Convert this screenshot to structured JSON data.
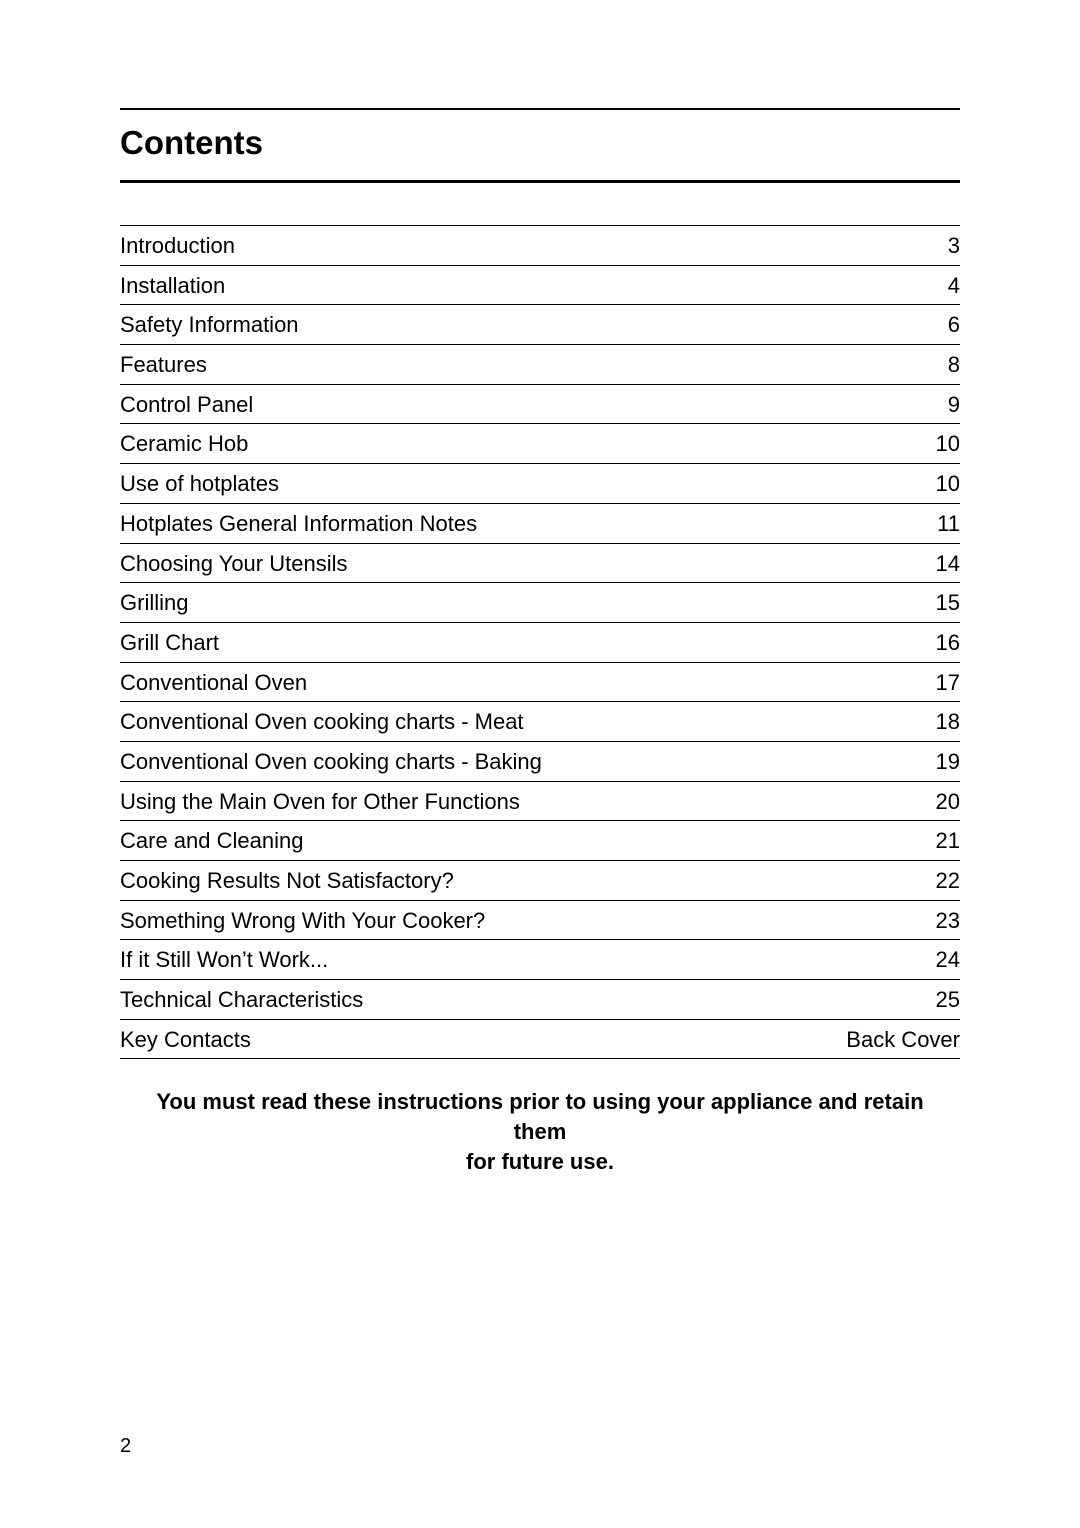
{
  "title": "Contents",
  "title_fontsize_pt": 25,
  "body_fontsize_pt": 16,
  "rule_color": "#000000",
  "background_color": "#ffffff",
  "text_color": "#000000",
  "toc": [
    {
      "label": "Introduction",
      "page": "3"
    },
    {
      "label": "Installation",
      "page": "4"
    },
    {
      "label": "Safety Information",
      "page": "6"
    },
    {
      "label": "Features",
      "page": "8"
    },
    {
      "label": "Control Panel",
      "page": "9"
    },
    {
      "label": "Ceramic Hob",
      "page": "10"
    },
    {
      "label": "Use of hotplates",
      "page": "10"
    },
    {
      "label": "Hotplates General Information Notes",
      "page": "11"
    },
    {
      "label": "Choosing Your Utensils",
      "page": "14"
    },
    {
      "label": "Grilling",
      "page": "15"
    },
    {
      "label": "Grill Chart",
      "page": "16"
    },
    {
      "label": "Conventional Oven",
      "page": "17"
    },
    {
      "label": "Conventional Oven cooking charts - Meat",
      "page": "18"
    },
    {
      "label": "Conventional Oven cooking charts - Baking",
      "page": "19"
    },
    {
      "label": "Using the Main Oven for Other Functions",
      "page": "20"
    },
    {
      "label": "Care and Cleaning",
      "page": "21"
    },
    {
      "label": "Cooking Results Not Satisfactory?",
      "page": "22"
    },
    {
      "label": "Something Wrong With Your Cooker?",
      "page": "23"
    },
    {
      "label": "If it Still Won’t Work...",
      "page": "24"
    },
    {
      "label": "Technical Characteristics",
      "page": "25"
    },
    {
      "label": "Key Contacts",
      "page": "Back Cover"
    }
  ],
  "notice_line1": "You must read these instructions prior to using your appliance and retain them",
  "notice_line2": "for future use.",
  "page_number": "2"
}
